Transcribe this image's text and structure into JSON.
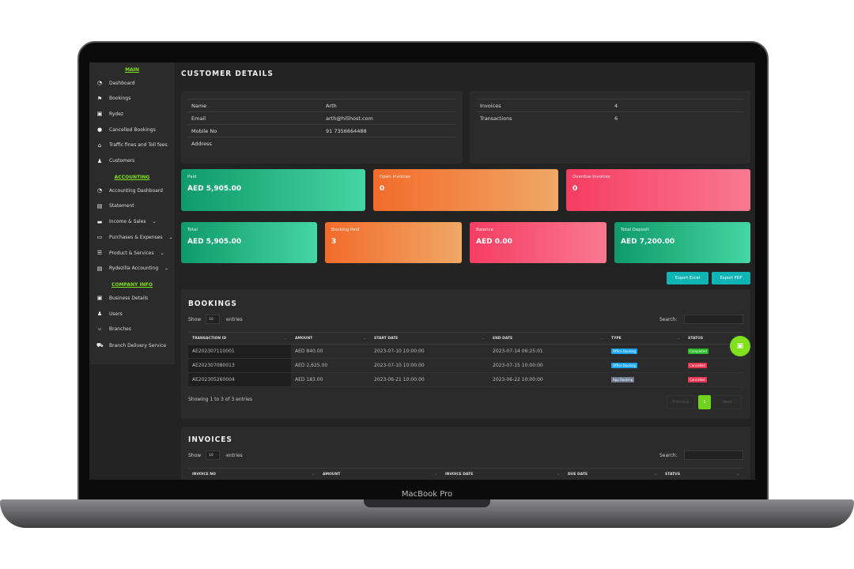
{
  "device": {
    "label": "MacBook Pro"
  },
  "sidebar": {
    "sections": [
      {
        "title": "MAIN",
        "items": [
          {
            "icon": "dashboard-icon",
            "glyph": "◔",
            "label": "Dashboard"
          },
          {
            "icon": "flag-icon",
            "glyph": "⚑",
            "label": "Bookings"
          },
          {
            "icon": "car-icon",
            "glyph": "▣",
            "label": "Rydez"
          },
          {
            "icon": "alert-icon",
            "glyph": "●",
            "label": "Cancelled Bookings"
          },
          {
            "icon": "toll-icon",
            "glyph": "⌂",
            "label": "Traffic fines and Toll fees"
          },
          {
            "icon": "user-icon",
            "glyph": "♟",
            "label": "Customers"
          }
        ]
      },
      {
        "title": "ACCOUNTING",
        "items": [
          {
            "icon": "dashboard-icon",
            "glyph": "◔",
            "label": "Accounting Dashboard"
          },
          {
            "icon": "calculator-icon",
            "glyph": "▤",
            "label": "Statement"
          },
          {
            "icon": "card-icon",
            "glyph": "▬",
            "label": "Income & Sales",
            "chevron": "⌄"
          },
          {
            "icon": "money-icon",
            "glyph": "▭",
            "label": "Purchases & Expenses",
            "chevron": "⌄"
          },
          {
            "icon": "list-icon",
            "glyph": "☰",
            "label": "Product & Services",
            "chevron": "⌄"
          },
          {
            "icon": "calculator-icon",
            "glyph": "▤",
            "label": "Rydezilla Accounting",
            "chevron": "⌄"
          }
        ]
      },
      {
        "title": "COMPANY INFO",
        "items": [
          {
            "icon": "briefcase-icon",
            "glyph": "▣",
            "label": "Business Details"
          },
          {
            "icon": "user-icon",
            "glyph": "♟",
            "label": "Users"
          },
          {
            "icon": "branch-icon",
            "glyph": "⑂",
            "label": "Branches"
          },
          {
            "icon": "truck-icon",
            "glyph": "⛟",
            "label": "Branch Delivery Service"
          }
        ]
      }
    ]
  },
  "page_title": "CUSTOMER DETAILS",
  "customer": [
    {
      "k": "Name",
      "v": "Arth"
    },
    {
      "k": "Email",
      "v": "arth@hi5host.com"
    },
    {
      "k": "Mobile No",
      "v": "91 7356664488"
    },
    {
      "k": "Address",
      "v": ""
    }
  ],
  "counts": [
    {
      "k": "Invoices",
      "v": "4"
    },
    {
      "k": "Transactions",
      "v": "6"
    }
  ],
  "stats_row1": [
    {
      "label": "Paid",
      "value": "AED 5,905.00",
      "color": "#1bb07f"
    },
    {
      "label": "Open Invoices",
      "value": "0",
      "color": "#f3823f"
    },
    {
      "label": "Overdue Invoices",
      "value": "0",
      "color": "#f7536f"
    }
  ],
  "stats_row2": [
    {
      "label": "Total",
      "value": "AED 5,905.00"
    },
    {
      "label": "Booking Paid",
      "value": "3"
    },
    {
      "label": "Balance",
      "value": "AED 0.00"
    },
    {
      "label": "Total Deposit",
      "value": "AED 7,200.00"
    }
  ],
  "export": {
    "excel": "Export Excel",
    "pdf": "Export PDF"
  },
  "bookings": {
    "title": "BOOKINGS",
    "show": "Show",
    "entries_value": "10",
    "entries": "entries",
    "search": "Search:",
    "columns": [
      "TRANSACTION ID",
      "AMOUNT",
      "START DATE",
      "END DATE",
      "TYPE",
      "STATUS"
    ],
    "rows": [
      {
        "id": "AE202307110001",
        "amount": "AED 840.00",
        "start": "2023-07-10 10:00:00",
        "end": "2023-07-14 06:25:01",
        "type": "Office Booking",
        "status": "Completed"
      },
      {
        "id": "AE202307080013",
        "amount": "AED 2,625.00",
        "start": "2023-07-10 10:00:00",
        "end": "2023-07-15 10:00:00",
        "type": "Office Booking",
        "status": "Cancelled"
      },
      {
        "id": "AE202305260004",
        "amount": "AED 183.00",
        "start": "2023-06-21 10:00:00",
        "end": "2023-06-22 10:00:00",
        "type": "App Booking",
        "status": "Cancelled"
      }
    ],
    "info": "Showing 1 to 3 of 3 entries",
    "prev": "Previous",
    "page": "1",
    "next": "Next"
  },
  "invoices": {
    "title": "INVOICES",
    "show": "Show",
    "entries_value": "10",
    "entries": "entries",
    "search": "Search:",
    "columns": [
      "INVOICE NO",
      "AMOUNT",
      "INVOICE DATE",
      "DUE DATE",
      "STATUS"
    ]
  },
  "colors": {
    "accent": "#7fe01b",
    "teal": "#10b4b4",
    "office": "#1aa3f0",
    "app": "#6b7a90",
    "completed": "#28b828",
    "cancelled": "#e8344e"
  }
}
